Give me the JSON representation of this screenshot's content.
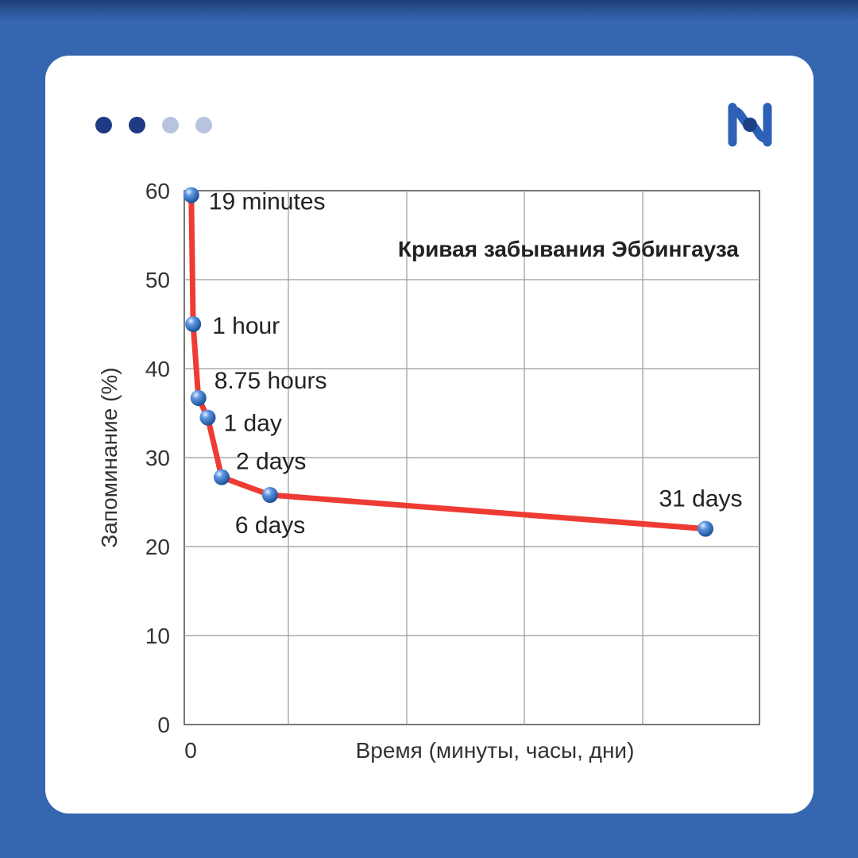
{
  "colors": {
    "background": "#3566b0",
    "card": "#ffffff",
    "dot_active": "#1f3a85",
    "dot_inactive": "#b8c3df",
    "logo": "#2b62b8",
    "curve": "#ee3b33",
    "grid": "#9a9a9a",
    "point": "#3f78c8"
  },
  "pager": {
    "dots": [
      "active",
      "active",
      "inactive",
      "inactive"
    ]
  },
  "logo": {
    "icon": "brand-h-icon"
  },
  "chart_data": {
    "type": "line",
    "title": "Кривая забывания Эббингауза",
    "xlabel": "Время (минуты, часы, дни)",
    "ylabel": "Запоминание (%)",
    "ylim": [
      0,
      60
    ],
    "yticks": [
      0,
      10,
      20,
      30,
      40,
      50,
      60
    ],
    "xtick_label": "0",
    "grid": true,
    "series": [
      {
        "name": "retention",
        "x": [
          0.02,
          0.08,
          0.25,
          0.55,
          1.0,
          3.0,
          21.0
        ],
        "y": [
          59.5,
          45,
          36.7,
          34.5,
          27.8,
          25.8,
          22
        ],
        "labels": [
          "19 minutes",
          "1 hour",
          "8.75 hours",
          "1 day",
          "2 days",
          "6 days",
          "31 days"
        ]
      }
    ]
  }
}
